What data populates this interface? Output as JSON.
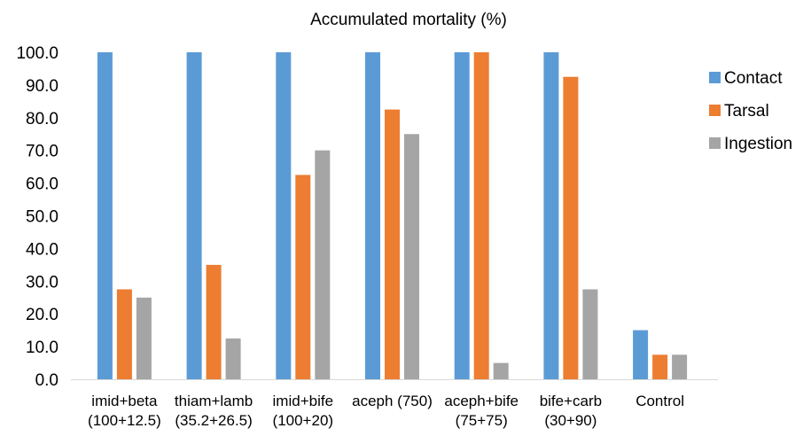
{
  "chart_data": {
    "type": "bar",
    "title": "Accumulated mortality (%)",
    "xlabel": "",
    "ylabel": "",
    "ylim": [
      0,
      100
    ],
    "yticks": [
      "0.0",
      "10.0",
      "20.0",
      "30.0",
      "40.0",
      "50.0",
      "60.0",
      "70.0",
      "80.0",
      "90.0",
      "100.0"
    ],
    "categories": [
      [
        "imid+beta",
        "(100+12.5)"
      ],
      [
        "thiam+lamb",
        "(35.2+26.5)"
      ],
      [
        "imid+bife",
        "(100+20)"
      ],
      [
        "aceph (750)"
      ],
      [
        "aceph+bife",
        "(75+75)"
      ],
      [
        "bife+carb",
        "(30+90)"
      ],
      [
        "Control"
      ]
    ],
    "series": [
      {
        "name": "Contact",
        "color": "#5B9BD5",
        "values": [
          100,
          100,
          100,
          100,
          100,
          100,
          15
        ]
      },
      {
        "name": "Tarsal",
        "color": "#ED7D31",
        "values": [
          27.5,
          35,
          62.5,
          82.5,
          100,
          92.5,
          7.5
        ]
      },
      {
        "name": "Ingestion",
        "color": "#A5A5A5",
        "values": [
          25,
          12.5,
          70,
          75,
          5,
          27.5,
          7.5
        ]
      }
    ],
    "legend_position": "right",
    "grid": false
  }
}
